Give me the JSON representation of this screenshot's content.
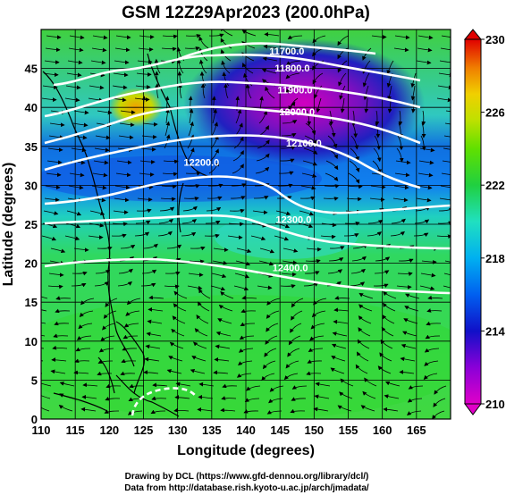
{
  "title": "GSM 12Z29Apr2023 (200.0hPa)",
  "xlabel": "Longitude (degrees)",
  "ylabel": "Latitude  (degrees)",
  "credit_line1": "Drawing by DCL (https://www.gfd-dennou.org/library/dcl/)",
  "credit_line2": "Data from http://database.rish.kyoto-u.ac.jp/arch/jmadata/",
  "chart_data": {
    "type": "heatmap",
    "x_ticks": [
      "110",
      "115",
      "120",
      "125",
      "130",
      "135",
      "140",
      "145",
      "150",
      "155",
      "160",
      "165"
    ],
    "y_ticks": [
      "0",
      "5",
      "10",
      "15",
      "20",
      "25",
      "30",
      "35",
      "40",
      "45"
    ],
    "xlim": [
      110,
      170
    ],
    "ylim": [
      0,
      50
    ],
    "colorbar": {
      "min": 210,
      "max": 230,
      "tick_labels": [
        "210",
        "214",
        "218",
        "222",
        "226",
        "230"
      ],
      "tick_values": [
        210,
        214,
        218,
        222,
        226,
        230
      ]
    },
    "contour_labels": [
      {
        "text": "11700.0",
        "lon": 146,
        "lat": 46.8
      },
      {
        "text": "11800.0",
        "lon": 146.8,
        "lat": 44.6
      },
      {
        "text": "11900.0",
        "lon": 147.2,
        "lat": 41.8
      },
      {
        "text": "12000.0",
        "lon": 147.5,
        "lat": 39.0
      },
      {
        "text": "12100.0",
        "lon": 148.5,
        "lat": 35.0
      },
      {
        "text": "12200.0",
        "lon": 133.5,
        "lat": 32.5
      },
      {
        "text": "12300.0",
        "lon": 147.0,
        "lat": 25.2
      },
      {
        "text": "12400.0",
        "lon": 146.5,
        "lat": 19.0
      }
    ]
  }
}
